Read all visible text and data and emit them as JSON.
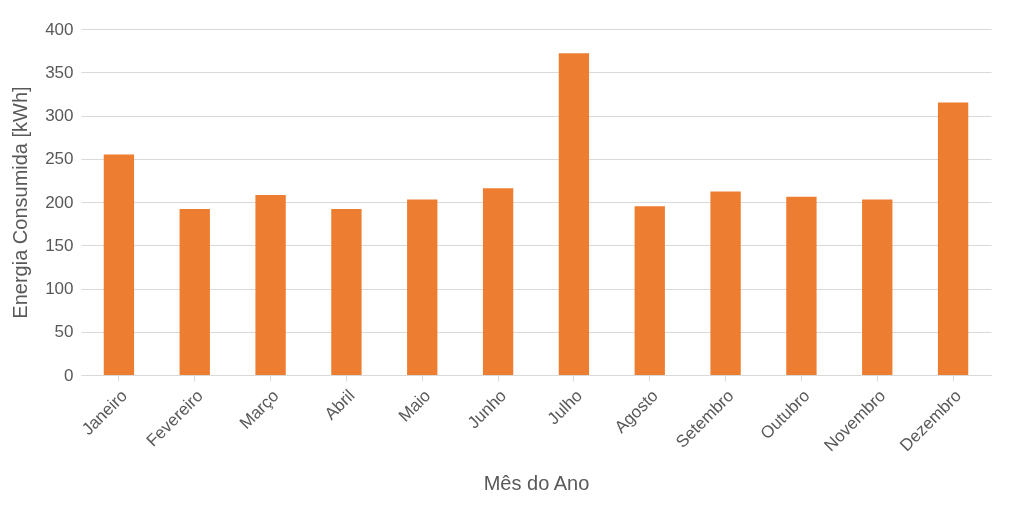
{
  "chart_data": {
    "type": "bar",
    "xlabel": "Mês do Ano",
    "ylabel": "Energia Consumida [kWh]",
    "categories": [
      "Janeiro",
      "Fevereiro",
      "Março",
      "Abril",
      "Maio",
      "Junho",
      "Julho",
      "Agosto",
      "Setembro",
      "Outubro",
      "Novembro",
      "Dezembro"
    ],
    "values": [
      255,
      192,
      208,
      192,
      203,
      216,
      372,
      195,
      212,
      206,
      203,
      315
    ],
    "color": "#ed7d31",
    "ylim": [
      0,
      400
    ],
    "yticks": [
      0,
      50,
      100,
      150,
      200,
      250,
      300,
      350,
      400
    ],
    "grid": "y"
  }
}
